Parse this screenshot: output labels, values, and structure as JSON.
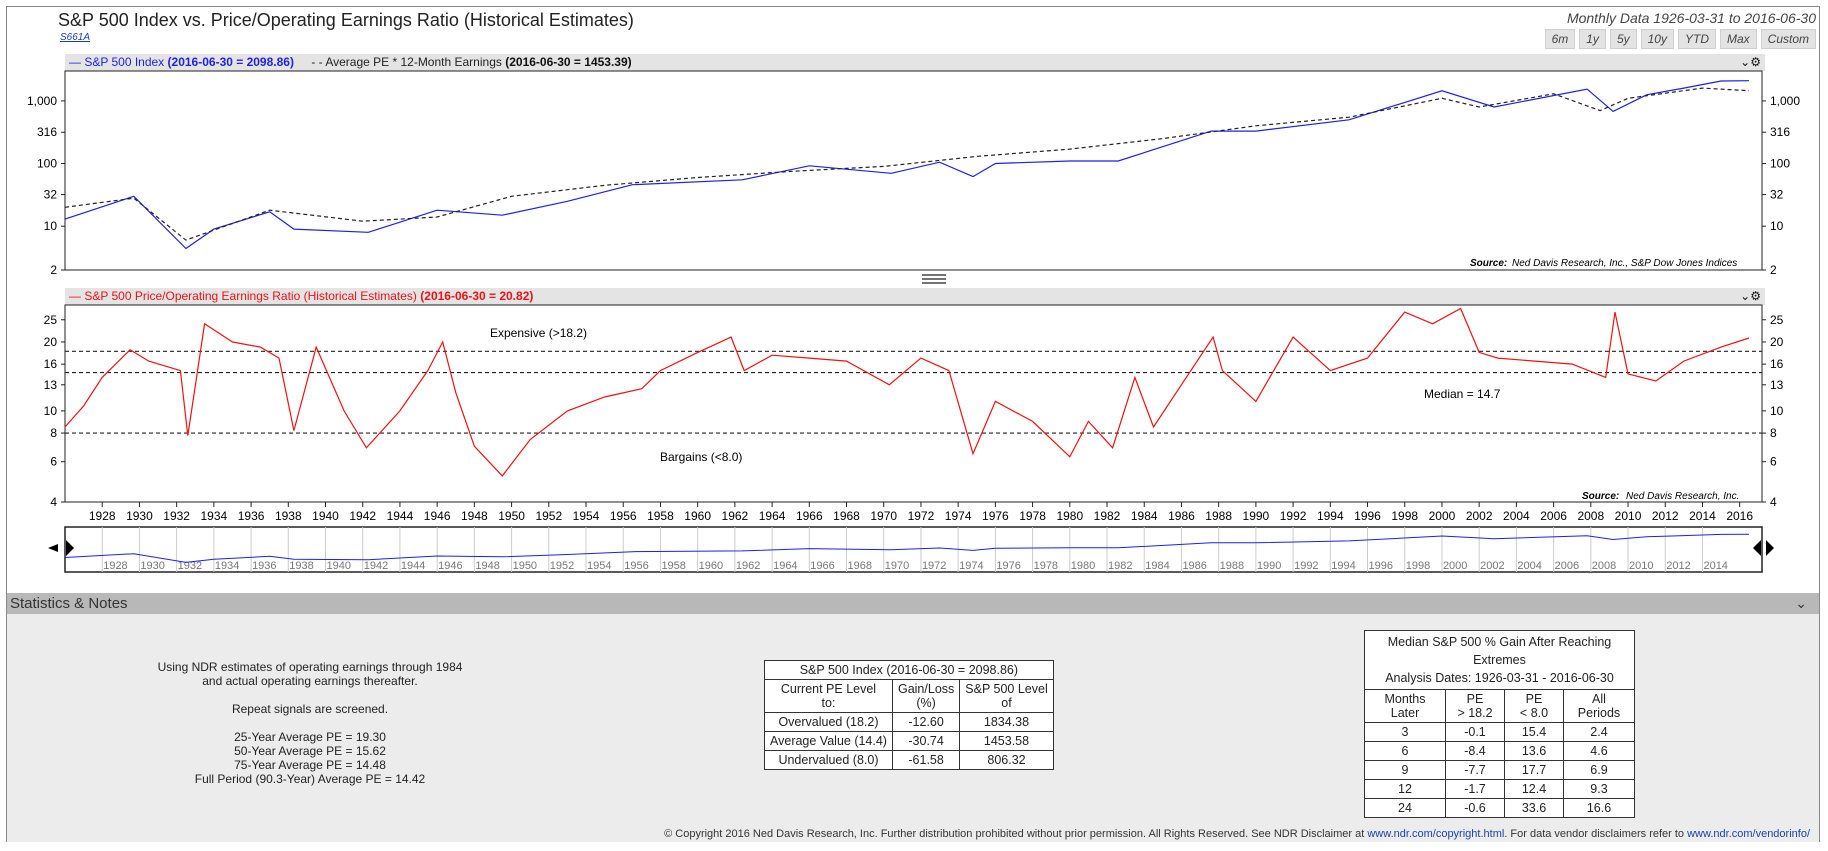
{
  "header": {
    "title": "S&P 500 Index vs. Price/Operating Earnings Ratio (Historical Estimates)",
    "code": "S661A",
    "date_range": "Monthly Data 1926-03-31 to 2016-06-30",
    "range_buttons": [
      "6m",
      "1y",
      "5y",
      "10y",
      "YTD",
      "Max",
      "Custom"
    ]
  },
  "top_panel": {
    "legend_sp": "S&P 500 Index",
    "legend_sp_value": "(2016-06-30 = 2098.86)",
    "legend_pe": "Average PE * 12-Month Earnings",
    "legend_pe_value": "(2016-06-30 = 1453.39)",
    "source_label": "Source:",
    "source_text": "Ned Davis Research, Inc., S&P Dow Jones Indices",
    "y_ticks": [
      "1,000",
      "316",
      "100",
      "32",
      "10",
      "2"
    ]
  },
  "bottom_panel": {
    "legend": "S&P 500 Price/Operating Earnings Ratio (Historical Estimates)",
    "legend_value": "(2016-06-30 = 20.82)",
    "expensive_label": "Expensive (>18.2)",
    "median_label": "Median = 14.7",
    "bargains_label": "Bargains (<8.0)",
    "source_label": "Source:",
    "source_text": "Ned Davis Research, Inc.",
    "y_ticks": [
      "25",
      "20",
      "16",
      "13",
      "10",
      "8",
      "6",
      "4"
    ]
  },
  "colors": {
    "sp500": "#1f1fe6",
    "pe": "#ee1111",
    "avg_pe": "#222222",
    "panel": "#e4e4e4"
  },
  "chart_data": [
    {
      "type": "line",
      "title": "S&P 500 Index vs. Average PE * 12-Month Earnings",
      "y_scale": "log",
      "ylim": [
        2,
        3000
      ],
      "grid": false,
      "legend_position": "top-left",
      "series": [
        {
          "name": "S&P 500 Index",
          "x": [
            1926,
            1929.7,
            1932.5,
            1934,
            1937,
            1938.3,
            1942.3,
            1946,
            1949.5,
            1953,
            1956.5,
            1962.4,
            1966,
            1970.4,
            1973,
            1974.8,
            1976,
            1980,
            1982.6,
            1987.6,
            1990,
            1995,
            2000,
            2002.8,
            2007.8,
            2009.2,
            2011,
            2013,
            2015,
            2016.5
          ],
          "values": [
            13,
            30,
            4.4,
            9,
            17,
            9,
            8,
            18,
            15,
            25,
            46,
            55,
            92,
            70,
            105,
            62,
            100,
            110,
            110,
            330,
            330,
            500,
            1450,
            800,
            1540,
            680,
            1250,
            1600,
            2080,
            2099
          ]
        },
        {
          "name": "Average PE * 12-Month Earnings",
          "x": [
            1926,
            1929.7,
            1932.5,
            1937,
            1942,
            1946,
            1950,
            1955,
            1960,
            1965,
            1970,
            1975,
            1980,
            1985,
            1990,
            1995,
            2000,
            2002,
            2006,
            2008.5,
            2010,
            2014,
            2016.5
          ],
          "values": [
            20,
            28,
            6,
            18,
            12,
            14,
            30,
            45,
            60,
            75,
            90,
            130,
            170,
            250,
            400,
            550,
            1100,
            800,
            1300,
            700,
            1100,
            1600,
            1453
          ]
        }
      ]
    },
    {
      "type": "line",
      "title": "S&P 500 Price/Operating Earnings Ratio (Historical Estimates)",
      "y_scale": "log",
      "ylim": [
        4,
        29
      ],
      "grid": false,
      "series": [
        {
          "name": "S&P 500 Price/Operating Earnings Ratio (Historical Estimates)",
          "x": [
            1926,
            1927,
            1928,
            1929.5,
            1930.5,
            1932.2,
            1932.6,
            1933.5,
            1935,
            1936.5,
            1937.5,
            1938.3,
            1939.5,
            1941,
            1942.2,
            1944,
            1945.5,
            1946.3,
            1947,
            1948,
            1949.5,
            1951,
            1953,
            1955,
            1957,
            1958,
            1960,
            1961.8,
            1962.5,
            1964,
            1966,
            1968,
            1970.3,
            1972,
            1973.5,
            1974.8,
            1976,
            1978,
            1980,
            1981,
            1982.3,
            1983.5,
            1984.5,
            1986,
            1987.7,
            1988.2,
            1990,
            1992,
            1994,
            1996,
            1998,
            1999.5,
            2001,
            2002,
            2003,
            2005,
            2007,
            2008.8,
            2009.3,
            2010,
            2011.5,
            2013,
            2015,
            2016.5
          ],
          "values": [
            8.5,
            10.5,
            14,
            18.5,
            16.5,
            15,
            7.8,
            24,
            20,
            19,
            17,
            8.2,
            19,
            10,
            6.9,
            10,
            15,
            20,
            12,
            7,
            5.2,
            7.5,
            10,
            11.5,
            12.5,
            15,
            18,
            21,
            15,
            17.5,
            17,
            16.5,
            13,
            17,
            15,
            6.5,
            11,
            9,
            6.3,
            9,
            6.9,
            14,
            8.5,
            13,
            21,
            15,
            11,
            21,
            15,
            17,
            27,
            24,
            28,
            18,
            17,
            16.5,
            16,
            14,
            27,
            14.5,
            13.5,
            16.5,
            19,
            20.82
          ]
        }
      ],
      "reference_lines": [
        {
          "label": "Expensive (>18.2)",
          "value": 18.2
        },
        {
          "label": "Median = 14.7",
          "value": 14.7
        },
        {
          "label": "Bargains (<8.0)",
          "value": 8.0
        }
      ],
      "x_ticks": [
        "1928",
        "1930",
        "1932",
        "1934",
        "1936",
        "1938",
        "1940",
        "1942",
        "1944",
        "1946",
        "1948",
        "1950",
        "1952",
        "1954",
        "1956",
        "1958",
        "1960",
        "1962",
        "1964",
        "1966",
        "1968",
        "1970",
        "1972",
        "1974",
        "1976",
        "1978",
        "1980",
        "1982",
        "1984",
        "1986",
        "1988",
        "1990",
        "1992",
        "1994",
        "1996",
        "1998",
        "2000",
        "2002",
        "2004",
        "2006",
        "2008",
        "2010",
        "2012",
        "2014",
        "2016"
      ]
    }
  ],
  "navigator": {
    "x_ticks": [
      "1928",
      "1930",
      "1932",
      "1934",
      "1936",
      "1938",
      "1940",
      "1942",
      "1944",
      "1946",
      "1948",
      "1950",
      "1952",
      "1954",
      "1956",
      "1958",
      "1960",
      "1962",
      "1964",
      "1966",
      "1968",
      "1970",
      "1972",
      "1974",
      "1976",
      "1978",
      "1980",
      "1982",
      "1984",
      "1986",
      "1988",
      "1990",
      "1992",
      "1994",
      "1996",
      "1998",
      "2000",
      "2002",
      "2004",
      "2006",
      "2008",
      "2010",
      "2012",
      "2014"
    ]
  },
  "stats": {
    "section_title": "Statistics & Notes",
    "notes": [
      "Using NDR estimates of operating earnings through 1984",
      "and actual operating earnings thereafter.",
      "",
      "Repeat signals are screened.",
      "",
      "25-Year Average PE = 19.30",
      "50-Year Average PE = 15.62",
      "75-Year Average PE = 14.48",
      "Full Period (90.3-Year) Average PE = 14.42"
    ],
    "level_table": {
      "title": "S&P 500 Index (2016-06-30 = 2098.86)",
      "headers": [
        [
          "Current PE Level",
          "to:"
        ],
        [
          "Gain/Loss",
          "(%)"
        ],
        [
          "S&P 500 Level",
          "of"
        ]
      ],
      "rows": [
        [
          "Overvalued (18.2)",
          "-12.60",
          "1834.38"
        ],
        [
          "Average Value (14.4)",
          "-30.74",
          "1453.58"
        ],
        [
          "Undervalued (8.0)",
          "-61.58",
          "806.32"
        ]
      ]
    },
    "gain_table": {
      "title": "Median S&P 500 % Gain After Reaching Extremes",
      "subtitle": "Analysis Dates: 1926-03-31 - 2016-06-30",
      "headers": [
        [
          "Months",
          "Later"
        ],
        [
          "PE",
          "> 18.2"
        ],
        [
          "PE",
          "< 8.0"
        ],
        [
          "All",
          "Periods"
        ]
      ],
      "rows": [
        [
          "3",
          "-0.1",
          "15.4",
          "2.4"
        ],
        [
          "6",
          "-8.4",
          "13.6",
          "4.6"
        ],
        [
          "9",
          "-7.7",
          "17.7",
          "6.9"
        ],
        [
          "12",
          "-1.7",
          "12.4",
          "9.3"
        ],
        [
          "24",
          "-0.6",
          "33.6",
          "16.6"
        ]
      ]
    }
  },
  "footer": {
    "text": "© Copyright 2016 Ned Davis Research, Inc. Further distribution prohibited without prior permission. All Rights Reserved. See NDR Disclaimer at",
    "link1": "www.ndr.com/copyright.html",
    "text2": ". For data vendor disclaimers refer to",
    "link2": "www.ndr.com/vendorinfo/"
  }
}
